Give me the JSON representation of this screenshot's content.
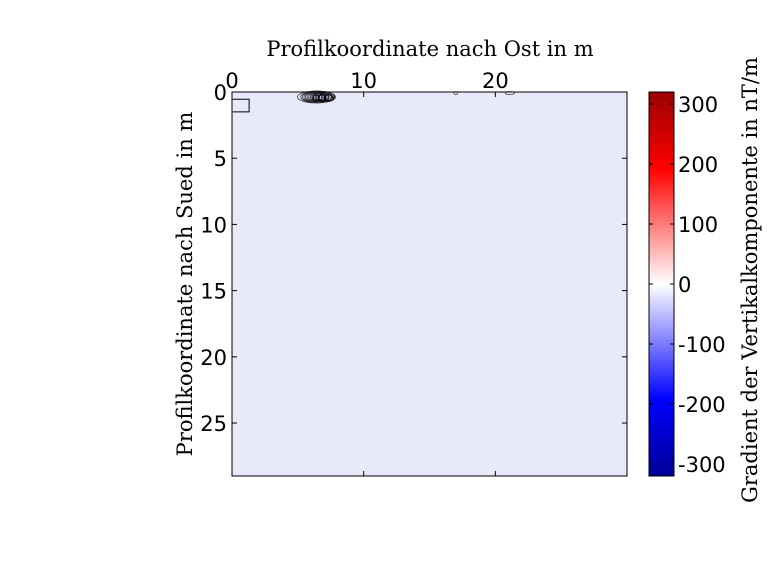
{
  "chart_data": {
    "type": "heatmap",
    "subtype": "contour-map",
    "xlabel": "Profilkoordinate nach Ost in m",
    "ylabel": "Profilkoordinate nach Sued in m",
    "x_axis_position": "top",
    "y_axis_direction": "reversed",
    "xlim": [
      0,
      30
    ],
    "ylim": [
      0,
      29
    ],
    "xticks": [
      0,
      10,
      20
    ],
    "yticks": [
      0,
      5,
      10,
      15,
      20,
      25
    ],
    "grid": false,
    "background_value": -20,
    "features": [
      {
        "kind": "contour-cluster",
        "center": [
          6.5,
          0.3
        ],
        "spread": [
          1.4,
          0.45
        ],
        "min_value": -300
      },
      {
        "kind": "small-anomaly",
        "center": [
          17.0,
          0.05
        ],
        "spread": [
          0.15,
          0.08
        ]
      },
      {
        "kind": "small-anomaly",
        "center": [
          21.1,
          0.05
        ],
        "spread": [
          0.35,
          0.1
        ]
      }
    ],
    "outline_box": {
      "x": [
        0.05,
        1.3
      ],
      "y": [
        0.55,
        1.5
      ]
    },
    "colorbar": {
      "label": "Gradient der Vertikalkomponente in nT/m",
      "limits": [
        -320,
        320
      ],
      "ticks": [
        300,
        200,
        100,
        0,
        -100,
        -200,
        -300
      ],
      "colormap": [
        "#00009b",
        "#0000ff",
        "#ffffff",
        "#ff0000",
        "#9b0000"
      ]
    }
  }
}
